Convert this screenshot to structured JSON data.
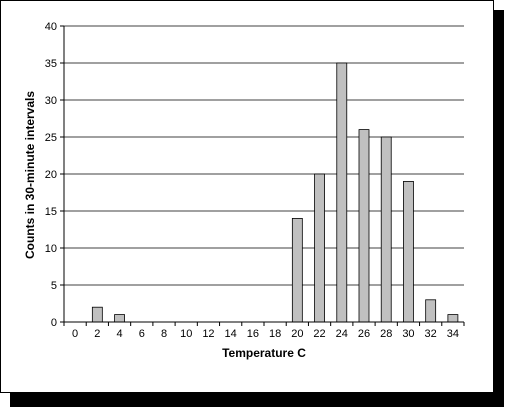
{
  "chart_data": {
    "type": "bar",
    "categories": [
      "0",
      "2",
      "4",
      "6",
      "8",
      "10",
      "12",
      "14",
      "16",
      "18",
      "20",
      "22",
      "24",
      "26",
      "28",
      "30",
      "32",
      "34"
    ],
    "values": [
      0,
      2,
      1,
      0,
      0,
      0,
      0,
      0,
      0,
      0,
      14,
      20,
      35,
      26,
      25,
      19,
      3,
      1
    ],
    "title": "",
    "xlabel": "Temperature  C",
    "ylabel": "Counts in 30-minute intervals",
    "ylim": [
      0,
      40
    ],
    "yticks": [
      "0",
      "5",
      "10",
      "15",
      "20",
      "25",
      "30",
      "35",
      "40"
    ],
    "grid": "horizontal",
    "legend": "none",
    "colors": {
      "bar_fill": "#c0c0c0",
      "bar_stroke": "#000000",
      "frame_shadow": "#000000",
      "background": "#ffffff"
    }
  }
}
